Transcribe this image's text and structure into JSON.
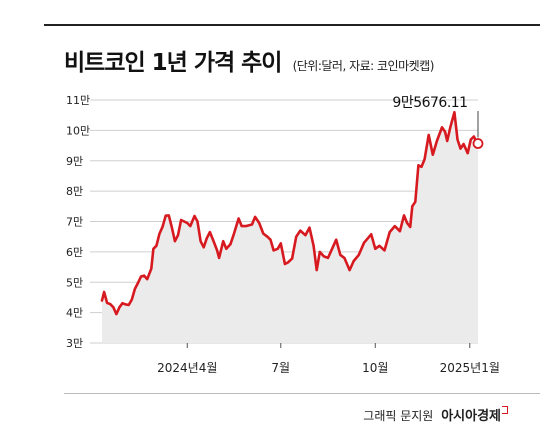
{
  "header": {
    "title": "비트코인 1년 가격 추이",
    "subtitle": "(단위:달러, 자료: 코인마켓캡)"
  },
  "footer": {
    "credit_prefix": "그래픽 문지원",
    "credit_brand": "아시아경제"
  },
  "colors": {
    "line": "#d71920",
    "area": "#ebebeb",
    "grid": "#cfcfcf"
  },
  "chart_data": {
    "type": "area",
    "title": "비트코인 1년 가격 추이",
    "subtitle": "(단위:달러, 자료: 코인마켓캡)",
    "ylim": [
      30000,
      110000
    ],
    "yticks": [
      {
        "value": 110000,
        "label": "11만"
      },
      {
        "value": 100000,
        "label": "10만"
      },
      {
        "value": 90000,
        "label": "9만"
      },
      {
        "value": 80000,
        "label": "8만"
      },
      {
        "value": 70000,
        "label": "7만"
      },
      {
        "value": 60000,
        "label": "6만"
      },
      {
        "value": 50000,
        "label": "5만"
      },
      {
        "value": 40000,
        "label": "4만"
      },
      {
        "value": 30000,
        "label": "3만"
      }
    ],
    "xlim": [
      "2024-01-09",
      "2025-01-09"
    ],
    "xticks": [
      {
        "date": "2024-04-01",
        "label": "2024년4월"
      },
      {
        "date": "2024-07-01",
        "label": "7월"
      },
      {
        "date": "2024-10-01",
        "label": "10월"
      },
      {
        "date": "2025-01-01",
        "label": "2025년1월"
      }
    ],
    "last_label": "9만5676.11",
    "grid": true,
    "series": [
      {
        "points": [
          [
            "2024-01-09",
            44000
          ],
          [
            "2024-01-11",
            46800
          ],
          [
            "2024-01-14",
            43200
          ],
          [
            "2024-01-17",
            42800
          ],
          [
            "2024-01-20",
            41800
          ],
          [
            "2024-01-23",
            39500
          ],
          [
            "2024-01-26",
            41800
          ],
          [
            "2024-01-29",
            43100
          ],
          [
            "2024-02-01",
            42700
          ],
          [
            "2024-02-04",
            42500
          ],
          [
            "2024-02-07",
            44300
          ],
          [
            "2024-02-10",
            47800
          ],
          [
            "2024-02-13",
            49800
          ],
          [
            "2024-02-16",
            51900
          ],
          [
            "2024-02-19",
            52200
          ],
          [
            "2024-02-22",
            51000
          ],
          [
            "2024-02-26",
            54500
          ],
          [
            "2024-02-28",
            61000
          ],
          [
            "2024-03-02",
            62000
          ],
          [
            "2024-03-05",
            66000
          ],
          [
            "2024-03-08",
            68300
          ],
          [
            "2024-03-11",
            71900
          ],
          [
            "2024-03-14",
            72000
          ],
          [
            "2024-03-17",
            68000
          ],
          [
            "2024-03-20",
            63500
          ],
          [
            "2024-03-23",
            65500
          ],
          [
            "2024-03-26",
            70500
          ],
          [
            "2024-03-29",
            70000
          ],
          [
            "2024-04-01",
            69500
          ],
          [
            "2024-04-04",
            68500
          ],
          [
            "2024-04-08",
            71800
          ],
          [
            "2024-04-11",
            70000
          ],
          [
            "2024-04-14",
            63500
          ],
          [
            "2024-04-17",
            61500
          ],
          [
            "2024-04-20",
            64500
          ],
          [
            "2024-04-23",
            66500
          ],
          [
            "2024-04-26",
            64000
          ],
          [
            "2024-04-30",
            60500
          ],
          [
            "2024-05-02",
            58000
          ],
          [
            "2024-05-06",
            63500
          ],
          [
            "2024-05-09",
            61000
          ],
          [
            "2024-05-13",
            62500
          ],
          [
            "2024-05-16",
            65500
          ],
          [
            "2024-05-21",
            71000
          ],
          [
            "2024-05-24",
            68500
          ],
          [
            "2024-05-28",
            68500
          ],
          [
            "2024-06-03",
            69000
          ],
          [
            "2024-06-06",
            71500
          ],
          [
            "2024-06-10",
            69500
          ],
          [
            "2024-06-14",
            66000
          ],
          [
            "2024-06-18",
            65000
          ],
          [
            "2024-06-21",
            64000
          ],
          [
            "2024-06-24",
            60500
          ],
          [
            "2024-06-28",
            61000
          ],
          [
            "2024-07-01",
            62800
          ],
          [
            "2024-07-05",
            56000
          ],
          [
            "2024-07-08",
            56500
          ],
          [
            "2024-07-12",
            57800
          ],
          [
            "2024-07-16",
            65000
          ],
          [
            "2024-07-20",
            67000
          ],
          [
            "2024-07-25",
            65500
          ],
          [
            "2024-07-29",
            68000
          ],
          [
            "2024-08-02",
            62000
          ],
          [
            "2024-08-05",
            54000
          ],
          [
            "2024-08-08",
            60000
          ],
          [
            "2024-08-12",
            58500
          ],
          [
            "2024-08-16",
            58000
          ],
          [
            "2024-08-20",
            61000
          ],
          [
            "2024-08-24",
            64000
          ],
          [
            "2024-08-28",
            59000
          ],
          [
            "2024-09-01",
            58000
          ],
          [
            "2024-09-06",
            54000
          ],
          [
            "2024-09-10",
            57000
          ],
          [
            "2024-09-15",
            59000
          ],
          [
            "2024-09-20",
            63000
          ],
          [
            "2024-09-27",
            65800
          ],
          [
            "2024-10-01",
            61000
          ],
          [
            "2024-10-05",
            62000
          ],
          [
            "2024-10-10",
            60500
          ],
          [
            "2024-10-15",
            66500
          ],
          [
            "2024-10-20",
            68500
          ],
          [
            "2024-10-25",
            66800
          ],
          [
            "2024-10-29",
            72000
          ],
          [
            "2024-11-01",
            69500
          ],
          [
            "2024-11-04",
            68200
          ],
          [
            "2024-11-06",
            75000
          ],
          [
            "2024-11-09",
            76500
          ],
          [
            "2024-11-12",
            88500
          ],
          [
            "2024-11-15",
            88000
          ],
          [
            "2024-11-18",
            90500
          ],
          [
            "2024-11-22",
            98500
          ],
          [
            "2024-11-26",
            92000
          ],
          [
            "2024-11-30",
            96500
          ],
          [
            "2024-12-05",
            101000
          ],
          [
            "2024-12-08",
            99500
          ],
          [
            "2024-12-10",
            96500
          ],
          [
            "2024-12-13",
            101000
          ],
          [
            "2024-12-17",
            106000
          ],
          [
            "2024-12-20",
            97000
          ],
          [
            "2024-12-23",
            94000
          ],
          [
            "2024-12-26",
            95500
          ],
          [
            "2024-12-30",
            92500
          ],
          [
            "2025-01-02",
            97000
          ],
          [
            "2025-01-05",
            98000
          ],
          [
            "2025-01-07",
            96500
          ],
          [
            "2025-01-09",
            95676.11
          ]
        ]
      }
    ]
  }
}
